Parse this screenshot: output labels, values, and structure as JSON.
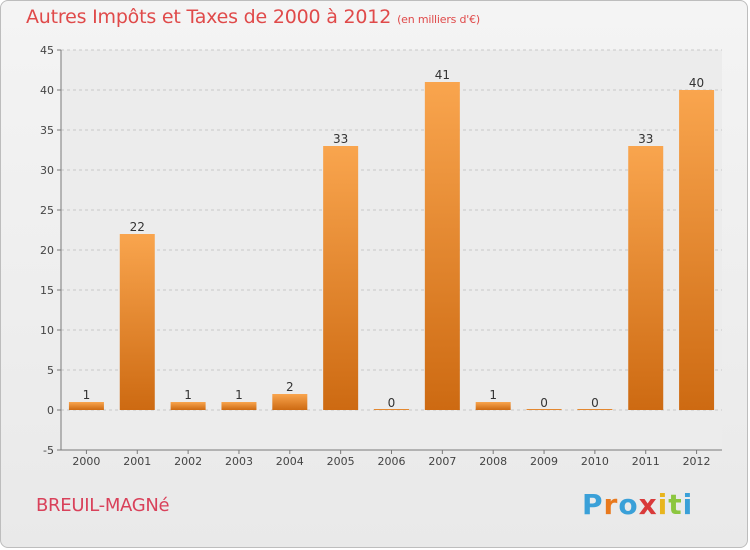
{
  "title": "Autres Impôts et Taxes de 2000 à 2012",
  "unit_note": "(en milliers d'€)",
  "commune": "BREUIL-MAGNé",
  "logo": {
    "letters": [
      "P",
      "r",
      "o",
      "x",
      "i",
      "t",
      "i"
    ],
    "colors": [
      "#3aa0d8",
      "#e8791d",
      "#3aa0d8",
      "#d93a3a",
      "#e8b51d",
      "#8cc63f",
      "#3aa0d8"
    ]
  },
  "colors": {
    "bar_light": "#f9a54e",
    "bar_dark": "#cd6a12",
    "title": "#e04a4a",
    "commune": "#d9415a"
  },
  "chart_data": {
    "type": "bar",
    "categories": [
      "2000",
      "2001",
      "2002",
      "2003",
      "2004",
      "2005",
      "2006",
      "2007",
      "2008",
      "2009",
      "2010",
      "2011",
      "2012"
    ],
    "values": [
      1,
      22,
      1,
      1,
      2,
      33,
      0,
      41,
      1,
      0,
      0,
      33,
      40
    ],
    "ylim": [
      -5,
      45
    ],
    "yticks": [
      -5,
      0,
      5,
      10,
      15,
      20,
      25,
      30,
      35,
      40,
      45
    ],
    "grid": true,
    "title": "Autres Impôts et Taxes de 2000 à 2012",
    "xlabel": "",
    "ylabel": ""
  }
}
